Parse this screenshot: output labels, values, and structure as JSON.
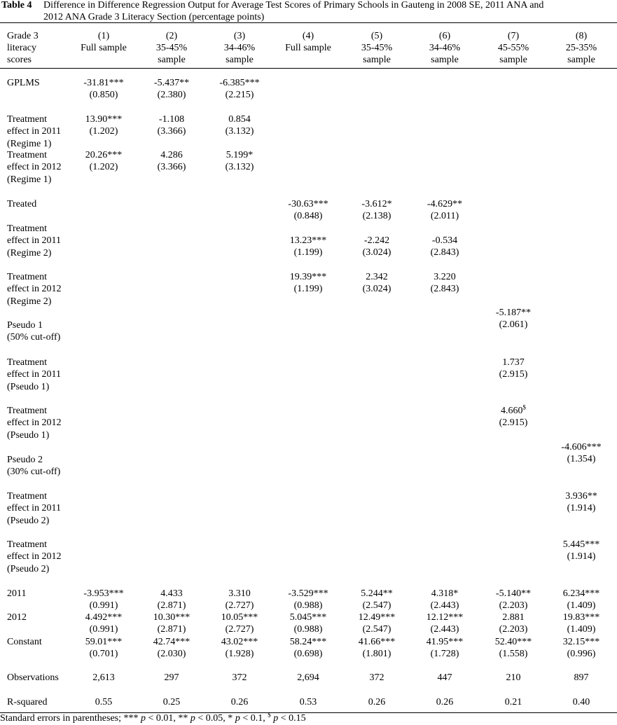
{
  "caption": {
    "label": "Table 4",
    "lines": [
      "Difference in Difference Regression Output for Average Test Scores of Primary Schools in Gauteng in 2008 SE, 2011 ANA and",
      "2012 ANA Grade 3 Literacy Section (percentage points)"
    ]
  },
  "header": [
    [
      "Grade 3",
      "literacy",
      "scores"
    ],
    [
      "(1)",
      "Full sample"
    ],
    [
      "(2)",
      "35-45%",
      "sample"
    ],
    [
      "(3)",
      "34-46%",
      "sample"
    ],
    [
      "(4)",
      "Full sample"
    ],
    [
      "(5)",
      "35-45%",
      "sample"
    ],
    [
      "(6)",
      "34-46%",
      "sample"
    ],
    [
      "(7)",
      "45-55%",
      "sample"
    ],
    [
      "(8)",
      "25-35%",
      "sample"
    ]
  ],
  "rows": [
    {
      "label": [
        "GPLMS"
      ],
      "cells": [
        {
          "coef": "-31.81***",
          "se": "(0.850)"
        },
        {
          "coef": "-5.437**",
          "se": "(2.380)"
        },
        {
          "coef": "-6.385***",
          "se": "(2.215)"
        },
        null,
        null,
        null,
        null,
        null
      ]
    },
    {
      "label": [
        "Treatment",
        "effect in 2011",
        "(Regime 1)"
      ],
      "cells": [
        {
          "coef": "13.90***",
          "se": "(1.202)"
        },
        {
          "coef": "-1.108",
          "se": "(3.366)"
        },
        {
          "coef": "0.854",
          "se": "(3.132)"
        },
        null,
        null,
        null,
        null,
        null
      ]
    },
    {
      "label": [
        "Treatment",
        "effect in 2012",
        "(Regime 1)"
      ],
      "cells": [
        {
          "coef": "20.26***",
          "se": "(1.202)"
        },
        {
          "coef": "4.286",
          "se": "(3.366)"
        },
        {
          "coef": "5.199*",
          "se": "(3.132)"
        },
        null,
        null,
        null,
        null,
        null
      ]
    },
    {
      "label": [
        "Treated"
      ],
      "cells": [
        null,
        null,
        null,
        {
          "coef": "-30.63***",
          "se": "(0.848)"
        },
        {
          "coef": "-3.612*",
          "se": "(2.138)"
        },
        {
          "coef": "-4.629**",
          "se": "(2.011)"
        },
        null,
        null
      ]
    },
    {
      "label": [
        "Treatment",
        "effect in 2011",
        "(Regime 2)"
      ],
      "cells": [
        null,
        null,
        null,
        {
          "coef": "13.23***",
          "se": "(1.199)"
        },
        {
          "coef": "-2.242",
          "se": "(3.024)"
        },
        {
          "coef": "-0.534",
          "se": "(2.843)"
        },
        null,
        null
      ]
    },
    {
      "label": [
        "Treatment",
        "effect in 2012",
        "(Regime 2)"
      ],
      "cells": [
        null,
        null,
        null,
        {
          "coef": "19.39***",
          "se": "(1.199)"
        },
        {
          "coef": "2.342",
          "se": "(3.024)"
        },
        {
          "coef": "3.220",
          "se": "(2.843)"
        },
        null,
        null
      ]
    },
    {
      "label": [
        "Pseudo 1",
        "(50% cut-off)"
      ],
      "cells": [
        null,
        null,
        null,
        null,
        null,
        null,
        {
          "coef": "-5.187**",
          "se": "(2.061)"
        },
        null
      ]
    },
    {
      "label": [
        "Treatment",
        "effect in 2011",
        "(Pseudo 1)"
      ],
      "cells": [
        null,
        null,
        null,
        null,
        null,
        null,
        {
          "coef": "1.737",
          "se": "(2.915)"
        },
        null
      ]
    },
    {
      "label": [
        "Treatment",
        "effect in 2012",
        "(Pseudo 1)"
      ],
      "cells": [
        null,
        null,
        null,
        null,
        null,
        null,
        {
          "coef": "4.660",
          "sup": "$",
          "se": "(2.915)"
        },
        null
      ]
    },
    {
      "label": [
        "Pseudo 2",
        "(30% cut-off)"
      ],
      "cells": [
        null,
        null,
        null,
        null,
        null,
        null,
        null,
        {
          "coef": "-4.606***",
          "se": "(1.354)"
        }
      ]
    },
    {
      "label": [
        "Treatment",
        "effect in 2011",
        "(Pseudo 2)"
      ],
      "cells": [
        null,
        null,
        null,
        null,
        null,
        null,
        null,
        {
          "coef": "3.936**",
          "se": "(1.914)"
        }
      ]
    },
    {
      "label": [
        "Treatment",
        "effect in 2012",
        "(Pseudo 2)"
      ],
      "cells": [
        null,
        null,
        null,
        null,
        null,
        null,
        null,
        {
          "coef": "5.445***",
          "se": "(1.914)"
        }
      ]
    },
    {
      "label": [
        "2011"
      ],
      "cells": [
        {
          "coef": "-3.953***",
          "se": "(0.991)"
        },
        {
          "coef": "4.433",
          "se": "(2.871)"
        },
        {
          "coef": "3.310",
          "se": "(2.727)"
        },
        {
          "coef": "-3.529***",
          "se": "(0.988)"
        },
        {
          "coef": "5.244**",
          "se": "(2.547)"
        },
        {
          "coef": "4.318*",
          "se": "(2.443)"
        },
        {
          "coef": "-5.140**",
          "se": "(2.203)"
        },
        {
          "coef": "6.234***",
          "se": "(1.409)"
        }
      ]
    },
    {
      "label": [
        "2012"
      ],
      "cells": [
        {
          "coef": "4.492***",
          "se": "(0.991)"
        },
        {
          "coef": "10.30***",
          "se": "(2.871)"
        },
        {
          "coef": "10.05***",
          "se": "(2.727)"
        },
        {
          "coef": "5.045***",
          "se": "(0.988)"
        },
        {
          "coef": "12.49***",
          "se": "(2.547)"
        },
        {
          "coef": "12.12***",
          "se": "(2.443)"
        },
        {
          "coef": "2.881",
          "se": "(2.203)"
        },
        {
          "coef": "19.83***",
          "se": "(1.409)"
        }
      ]
    },
    {
      "label": [
        "Constant"
      ],
      "cells": [
        {
          "coef": "59.01***",
          "se": "(0.701)"
        },
        {
          "coef": "42.74***",
          "se": "(2.030)"
        },
        {
          "coef": "43.02***",
          "se": "(1.928)"
        },
        {
          "coef": "58.24***",
          "se": "(0.698)"
        },
        {
          "coef": "41.66***",
          "se": "(1.801)"
        },
        {
          "coef": "41.95***",
          "se": "(1.728)"
        },
        {
          "coef": "52.40***",
          "se": "(1.558)"
        },
        {
          "coef": "32.15***",
          "se": "(0.996)"
        }
      ]
    },
    {
      "label": [
        "Observations"
      ],
      "cells": [
        {
          "coef": "2,613"
        },
        {
          "coef": "297"
        },
        {
          "coef": "372"
        },
        {
          "coef": "2,694"
        },
        {
          "coef": "372"
        },
        {
          "coef": "447"
        },
        {
          "coef": "210"
        },
        {
          "coef": "897"
        }
      ]
    },
    {
      "label": [
        "R-squared"
      ],
      "cells": [
        {
          "coef": "0.55"
        },
        {
          "coef": "0.25"
        },
        {
          "coef": "0.26"
        },
        {
          "coef": "0.53"
        },
        {
          "coef": "0.26"
        },
        {
          "coef": "0.26"
        },
        {
          "coef": "0.21"
        },
        {
          "coef": "0.40"
        }
      ]
    }
  ],
  "footnote": [
    {
      "text": "Standard errors in parentheses; *** "
    },
    {
      "text": "p",
      "italic": true
    },
    {
      "text": " < 0.01, ** "
    },
    {
      "text": "p",
      "italic": true
    },
    {
      "text": " < 0.05, * "
    },
    {
      "text": "p",
      "italic": true
    },
    {
      "text": " < 0.1, "
    },
    {
      "text": "$",
      "sup": true
    },
    {
      "text": " "
    },
    {
      "text": "p",
      "italic": true
    },
    {
      "text": " < 0.15"
    }
  ]
}
